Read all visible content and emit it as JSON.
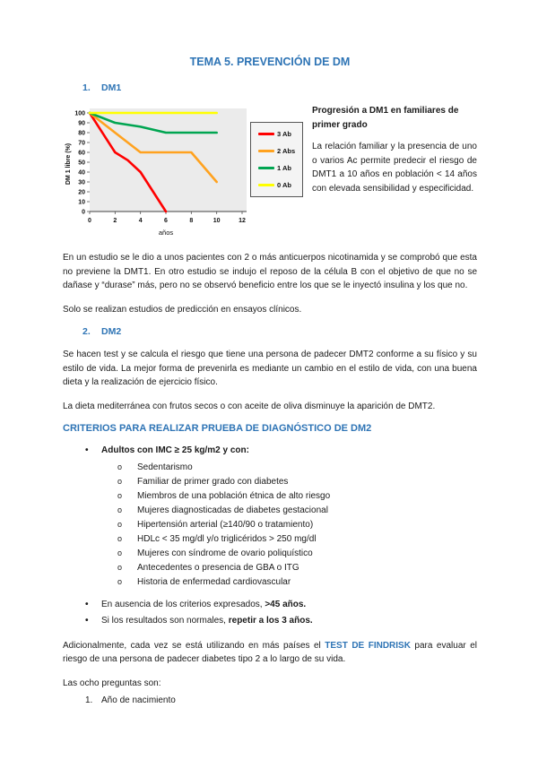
{
  "doc": {
    "title": "TEMA 5. PREVENCIÓN DE DM"
  },
  "accent_color": "#2e74b5",
  "markers": {
    "level1": "•",
    "level2": "o"
  },
  "sections": {
    "dm1": {
      "number": "1.",
      "label": "DM1"
    },
    "dm2": {
      "number": "2.",
      "label": "DM2"
    }
  },
  "figure": {
    "caption": "Progresión a DM1 en familiares de primer grado",
    "text": "La relación familiar y la presencia de uno o varios Ac permite predecir el riesgo de DMT1 a 10 años en población < 14 años con elevada sensibilidad y especificidad."
  },
  "chart_data": {
    "type": "line",
    "title": "",
    "xlabel": "años",
    "ylabel": "DM 1 libre (%)",
    "xlim": [
      0,
      12
    ],
    "ylim": [
      0,
      100
    ],
    "xticks": [
      0,
      2,
      4,
      6,
      8,
      10,
      12
    ],
    "yticks": [
      0,
      10,
      20,
      30,
      40,
      50,
      60,
      70,
      80,
      90,
      100
    ],
    "grid": false,
    "legend_position": "right",
    "plot_bg": "#ebebeb",
    "series": [
      {
        "name": "3 Ab",
        "color": "#ff0000",
        "x": [
          0,
          2,
          3,
          4,
          6
        ],
        "y": [
          100,
          60,
          52,
          40,
          0
        ]
      },
      {
        "name": "2 Abs",
        "color": "#ffa21f",
        "x": [
          0,
          4,
          8,
          10
        ],
        "y": [
          100,
          60,
          60,
          30
        ]
      },
      {
        "name": "1 Ab",
        "color": "#00a551",
        "x": [
          0,
          2,
          4,
          6,
          10
        ],
        "y": [
          100,
          90,
          86,
          80,
          80
        ]
      },
      {
        "name": "0 Ab",
        "color": "#ffff00",
        "x": [
          0,
          10
        ],
        "y": [
          100,
          100
        ]
      }
    ]
  },
  "paragraphs": {
    "p1": "En un estudio se le dio a unos pacientes con 2 o más anticuerpos nicotinamida y se comprobó que esta no previene la DMT1. En otro estudio se indujo el reposo de la célula B con el objetivo de que no se dañase y “durase” más, pero no se observó beneficio entre los que se le inyectó insulina y los que no.",
    "p2": "Solo se realizan estudios de predicción en ensayos clínicos.",
    "p3": "Se hacen test y se calcula el riesgo que tiene una persona de padecer DMT2 conforme a su físico y su estilo de vida. La mejor forma de prevenirla es mediante un cambio en el estilo de vida, con una buena dieta y la realización de ejercicio físico.",
    "p4": "La dieta mediterránea con frutos secos o con aceite de oliva disminuye la aparición de DMT2."
  },
  "criteria": {
    "heading": "CRITERIOS PARA REALIZAR PRUEBA DE DIAGNÓSTICO DE DM2",
    "adults_label": "Adultos con IMC ≥ 25 kg/m2 y con:",
    "items": [
      "Sedentarismo",
      "Familiar de primer grado con diabetes",
      "Miembros de una población étnica de alto riesgo",
      "Mujeres diagnosticadas de diabetes gestacional",
      "Hipertensión arterial (≥140/90 o tratamiento)",
      "HDLc < 35 mg/dl y/o triglicéridos > 250 mg/dl",
      "Mujeres con síndrome de ovario poliquístico",
      "Antecedentes o presencia de GBA o ITG",
      "Historia de enfermedad cardiovascular"
    ]
  },
  "bullets2": {
    "item1_normal": "En ausencia de los criterios expresados, ",
    "item1_bold": ">45 años.",
    "item2_normal": "Si los resultados son normales, ",
    "item2_bold": "repetir a los 3 años."
  },
  "findrisk": {
    "before": "Adicionalmente, cada vez se está utilizando en más países el ",
    "highlight": "TEST DE FINDRISK",
    "after": " para evaluar el riesgo de una persona de padecer diabetes tipo 2 a lo largo de su vida."
  },
  "questions": {
    "intro": "Las ocho preguntas son:",
    "items": [
      {
        "number": "1.",
        "text": "Año de nacimiento"
      }
    ]
  }
}
